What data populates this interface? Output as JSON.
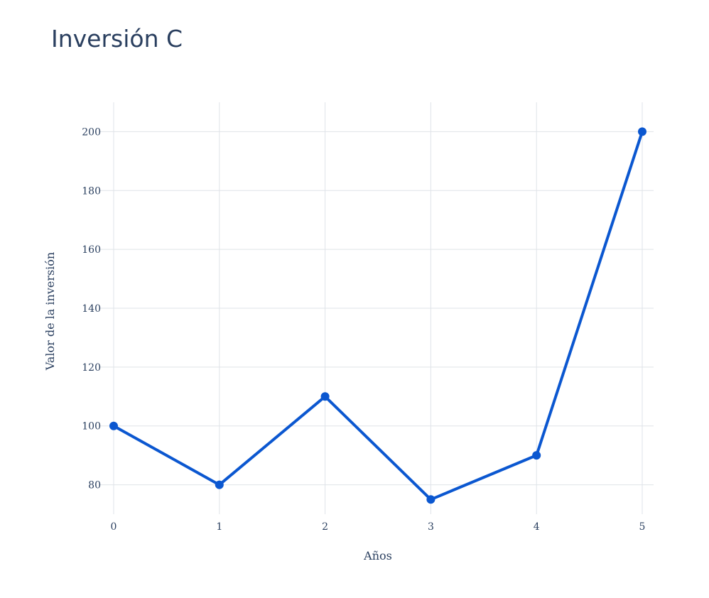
{
  "chart_data": {
    "type": "line",
    "title": "Inversión C",
    "xlabel": "Años",
    "ylabel": "Valor de la inversión",
    "x": [
      0,
      1,
      2,
      3,
      4,
      5
    ],
    "series": [
      {
        "values": [
          100,
          80,
          110,
          75,
          90,
          200
        ],
        "color": "#0b57d0"
      }
    ],
    "x_ticks": [
      0,
      1,
      2,
      3,
      4,
      5
    ],
    "y_ticks": [
      80,
      100,
      120,
      140,
      160,
      180,
      200
    ],
    "xlim": [
      0,
      5
    ],
    "ylim": [
      70,
      210
    ],
    "grid": true,
    "legend": "none",
    "markers": true
  }
}
